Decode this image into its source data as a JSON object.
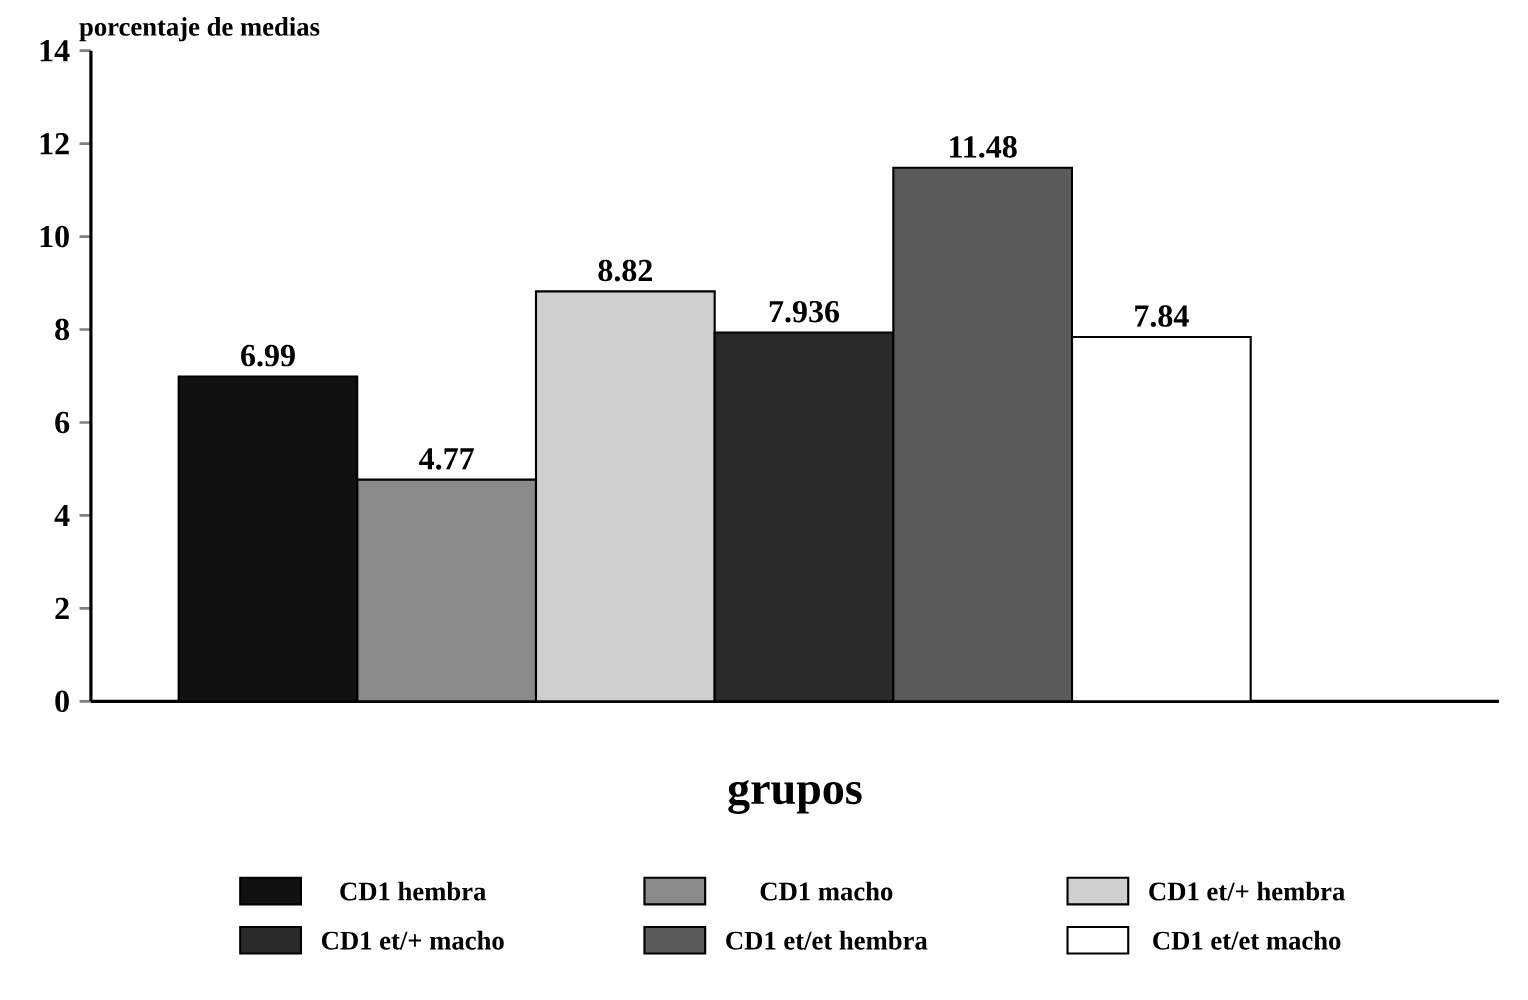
{
  "chart_data": {
    "type": "bar",
    "ylabel": "porcentaje de medias",
    "xlabel": "grupos",
    "categories": [
      null
    ],
    "series": [
      {
        "name": "CD1 hembra",
        "color": "#111111",
        "values": [
          6.99
        ]
      },
      {
        "name": "CD1 macho",
        "color": "#8a8a8a",
        "values": [
          4.77
        ]
      },
      {
        "name": "CD1 et/+ hembra",
        "color": "#cfcfcf",
        "values": [
          8.82
        ]
      },
      {
        "name": "CD1 et/+ macho",
        "color": "#2a2a2a",
        "values": [
          7.936
        ]
      },
      {
        "name": "CD1 et/et hembra",
        "color": "#5a5a5a",
        "values": [
          11.48
        ]
      },
      {
        "name": "CD1 et/et macho",
        "color": "#ffffff",
        "values": [
          7.84
        ]
      }
    ],
    "ylim": [
      0,
      14
    ],
    "yticks": [
      0,
      2,
      4,
      6,
      8,
      10,
      12,
      14
    ],
    "data_labels": true,
    "legend": "bottom",
    "grid": false
  }
}
